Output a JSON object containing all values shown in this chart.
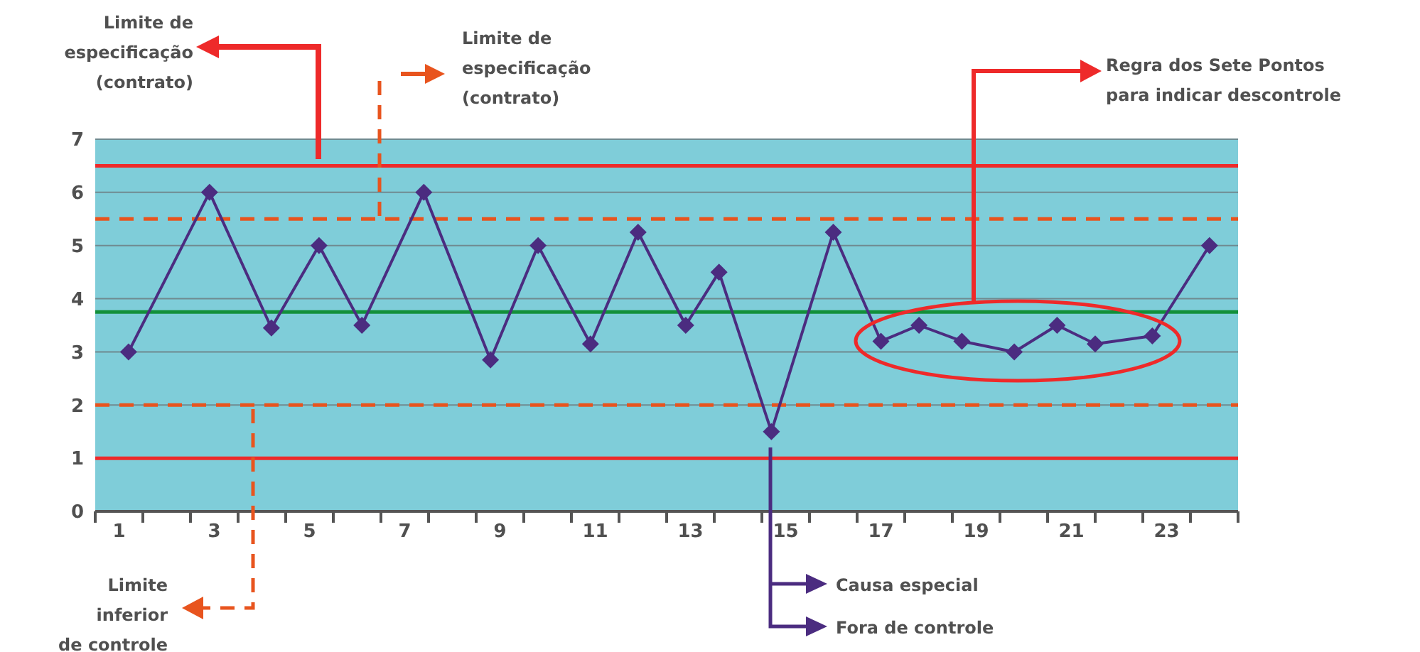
{
  "chart_data": {
    "type": "line",
    "x": [
      1.2,
      2.9,
      4.2,
      5.2,
      6.1,
      7.4,
      8.8,
      9.8,
      10.9,
      11.9,
      12.9,
      13.6,
      14.7,
      16.0,
      17.0,
      17.8,
      18.7,
      19.8,
      20.7,
      21.5,
      22.7,
      23.9
    ],
    "series": [
      {
        "color": "#4b2c80",
        "values": [
          3,
          6,
          3.45,
          5,
          3.5,
          6,
          2.85,
          5,
          3.15,
          5.25,
          3.5,
          4.5,
          1.5,
          5.25,
          3.2,
          3.5,
          3.2,
          3,
          3.5,
          3.15,
          3.3,
          5
        ]
      }
    ],
    "xlim": [
      0.5,
      24.5
    ],
    "xticks": [
      {
        "value": 0.5,
        "label": null
      },
      1,
      {
        "value": 1.5,
        "label": null
      },
      {
        "value": 2.5,
        "label": null
      },
      3,
      {
        "value": 3.5,
        "label": null
      },
      {
        "value": 4.5,
        "label": null
      },
      5,
      {
        "value": 5.5,
        "label": null
      },
      {
        "value": 6.5,
        "label": null
      },
      7,
      {
        "value": 7.5,
        "label": null
      },
      {
        "value": 8.5,
        "label": null
      },
      9,
      {
        "value": 9.5,
        "label": null
      },
      {
        "value": 10.5,
        "label": null
      },
      11,
      {
        "value": 11.5,
        "label": null
      },
      {
        "value": 12.5,
        "label": null
      },
      13,
      {
        "value": 13.5,
        "label": null
      },
      {
        "value": 14.5,
        "label": null
      },
      15,
      {
        "value": 15.5,
        "label": null
      },
      {
        "value": 16.5,
        "label": null
      },
      17,
      {
        "value": 17.5,
        "label": null
      },
      {
        "value": 18.5,
        "label": null
      },
      19,
      {
        "value": 19.5,
        "label": null
      },
      {
        "value": 20.5,
        "label": null
      },
      21,
      {
        "value": 21.5,
        "label": null
      },
      {
        "value": 22.5,
        "label": null
      },
      23,
      {
        "value": 23.5,
        "label": null
      },
      {
        "value": 24.5,
        "label": null
      }
    ],
    "ylim": [
      0,
      7
    ],
    "yticks": [
      0,
      1,
      2,
      3,
      4,
      5,
      6,
      7
    ],
    "grid": "y",
    "marker": "diamond",
    "line_style": "solid",
    "ref_lines": [
      {
        "axis": "y",
        "value": 6.5,
        "color": "#ee2a2a",
        "line_style": "solid"
      },
      {
        "axis": "y",
        "value": 5.5,
        "color": "#e8541e",
        "line_style": "dashed"
      },
      {
        "axis": "y",
        "value": 3.75,
        "color": "#13903a",
        "line_style": "solid"
      },
      {
        "axis": "y",
        "value": 2,
        "color": "#e8541e",
        "line_style": "dashed"
      },
      {
        "axis": "y",
        "value": 1,
        "color": "#ee2a2a",
        "line_style": "solid"
      }
    ],
    "annotations": [
      "Limite de\nespecificação\n(contrato)",
      "Limite de\nespecificação\n(contrato)",
      "Regra dos Sete Pontos\npara indicar descontrole",
      "Limite\ninferior\nde controle",
      "Causa especial",
      "Fora de controle"
    ]
  }
}
